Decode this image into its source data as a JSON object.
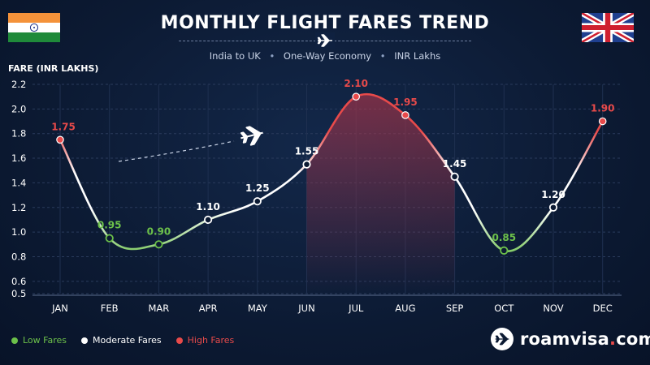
{
  "header": {
    "title": "MONTHLY FLIGHT FARES TREND",
    "subtitle_items": [
      "India to UK",
      "One-Way Economy",
      "INR Lakhs"
    ]
  },
  "icons": {
    "left_flag": "india-flag-icon",
    "right_flag": "uk-flag-icon",
    "title_plane": "airplane-icon",
    "chart_plane": "airplane-icon",
    "brand_logo": "airplane-icon"
  },
  "legend": {
    "items": [
      {
        "label": "Low Fares",
        "color": "#6cc04a"
      },
      {
        "label": "Moderate Fares",
        "color": "#ffffff"
      },
      {
        "label": "High Fares",
        "color": "#e84a4a"
      }
    ]
  },
  "brand": {
    "name": "roamvisa",
    "dot": ".",
    "tld": "com"
  },
  "chart_data": {
    "type": "line",
    "title": "MONTHLY FLIGHT FARES TREND",
    "ylabel": "FARE (INR LAKHS)",
    "xlabel": "",
    "categories": [
      "JAN",
      "FEB",
      "MAR",
      "APR",
      "MAY",
      "JUN",
      "JUL",
      "AUG",
      "SEP",
      "OCT",
      "NOV",
      "DEC"
    ],
    "values": [
      1.75,
      0.95,
      0.9,
      1.1,
      1.25,
      1.55,
      2.1,
      1.95,
      1.45,
      0.85,
      1.2,
      1.9
    ],
    "labels": [
      "1.75",
      "0.95",
      "0.90",
      "1.10",
      "1.25",
      "1.55",
      "2.10",
      "1.95",
      "1.45",
      "0.85",
      "1.20",
      "1.90"
    ],
    "levels": [
      "high",
      "low",
      "low",
      "moderate",
      "moderate",
      "moderate",
      "high",
      "high",
      "moderate",
      "low",
      "moderate",
      "high"
    ],
    "ylim": [
      0.5,
      2.2
    ],
    "yticks": [
      "2.2",
      "2.0",
      "1.8",
      "1.6",
      "1.4",
      "1.2",
      "1.0",
      "0.8",
      "0.6",
      "0.5"
    ],
    "yticks_values": [
      2.2,
      2.0,
      1.8,
      1.6,
      1.4,
      1.2,
      1.0,
      0.8,
      0.6,
      0.5
    ],
    "colors": {
      "low": "#6cc04a",
      "moderate": "#ffffff",
      "high": "#e84a4a"
    },
    "grid": true,
    "legend_position": "bottom-left"
  }
}
